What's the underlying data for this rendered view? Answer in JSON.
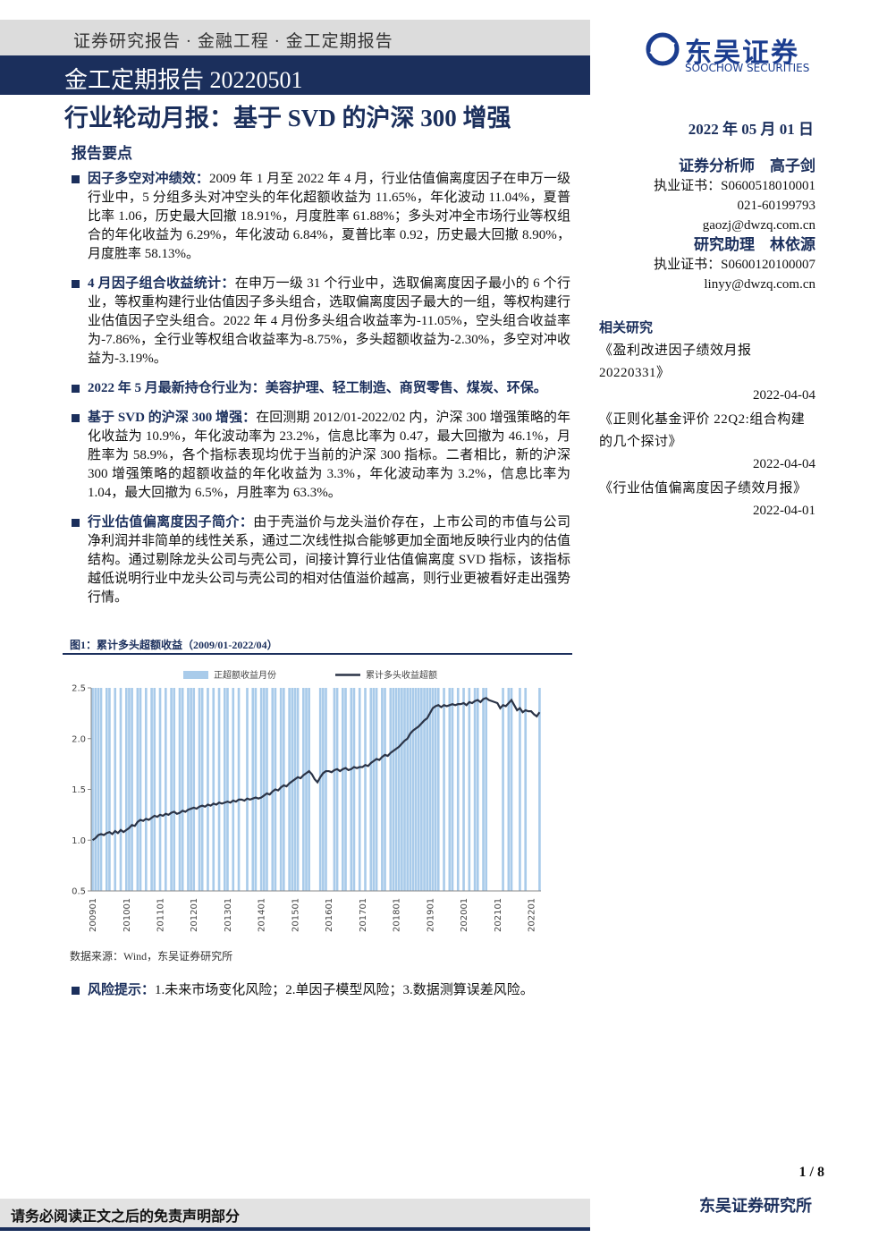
{
  "header": {
    "breadcrumb": "证券研究报告 · 金融工程 · 金工定期报告",
    "report": "金工定期报告 20220501",
    "logo": "东吴证券",
    "logo_en": "SOOCHOW SECURITIES"
  },
  "title": "行业轮动月报：基于 SVD 的沪深 300 增强",
  "date": "2022 年 05 月 01 日",
  "summary_heading": "报告要点",
  "bullets": [
    {
      "lead": "因子多空对冲绩效：",
      "text": "2009 年 1 月至 2022 年 4 月，行业估值偏离度因子在申万一级行业中，5 分组多头对冲空头的年化超额收益为 11.65%，年化波动 11.04%，夏普比率 1.06，历史最大回撤 18.91%，月度胜率 61.88%；多头对冲全市场行业等权组合的年化收益为 6.29%，年化波动 6.84%，夏普比率 0.92，历史最大回撤 8.90%，月度胜率 58.13%。"
    },
    {
      "lead": "4 月因子组合收益统计：",
      "text": "在申万一级 31 个行业中，选取偏离度因子最小的 6 个行业，等权重构建行业估值因子多头组合，选取偏离度因子最大的一组，等权构建行业估值因子空头组合。2022 年 4 月份多头组合收益率为-11.05%，空头组合收益率为-7.86%，全行业等权组合收益率为-8.75%，多头超额收益为-2.30%，多空对冲收益为-3.19%。"
    },
    {
      "lead": "2022 年 5 月最新持仓行业为：美容护理、轻工制造、商贸零售、煤炭、环保。",
      "text": ""
    },
    {
      "lead": "基于 SVD 的沪深 300 增强：",
      "text": "在回测期 2012/01-2022/02 内，沪深 300 增强策略的年化收益为 10.9%，年化波动率为 23.2%，信息比率为 0.47，最大回撤为 46.1%，月胜率为 58.9%，各个指标表现均优于当前的沪深 300 指标。二者相比，新的沪深 300 增强策略的超额收益的年化收益为 3.3%，年化波动率为 3.2%，信息比率为 1.04，最大回撤为 6.5%，月胜率为 63.3%。"
    },
    {
      "lead": "行业估值偏离度因子简介：",
      "text": "由于壳溢价与龙头溢价存在，上市公司的市值与公司净利润并非简单的线性关系，通过二次线性拟合能够更加全面地反映行业内的估值结构。通过剔除龙头公司与壳公司，间接计算行业估值偏离度 SVD 指标，该指标越低说明行业中龙头公司与壳公司的相对估值溢价越高，则行业更被看好走出强势行情。"
    }
  ],
  "analysts": [
    {
      "role": "证券分析师　高子剑",
      "cert": "执业证书：S0600518010001",
      "phone": "021-60199793",
      "email": "gaozj@dwzq.com.cn"
    },
    {
      "role": "研究助理　林依源",
      "cert": "执业证书：S0600120100007",
      "email": "linyy@dwzq.com.cn"
    }
  ],
  "related": {
    "heading": "相关研究",
    "items": [
      {
        "title": "《盈利改进因子绩效月报 20220331》",
        "date": "2022-04-04"
      },
      {
        "title": "《正则化基金评价 22Q2:组合构建的几个探讨》",
        "date": "2022-04-04"
      },
      {
        "title": "《行业估值偏离度因子绩效月报》",
        "date": "2022-04-01"
      }
    ]
  },
  "figure_caption": "图1：累计多头超额收益（2009/01-2022/04）",
  "chart_data": {
    "type": "bar-line",
    "categories": [
      "200901",
      null,
      null,
      null,
      null,
      null,
      null,
      null,
      null,
      null,
      null,
      null,
      "201001",
      null,
      null,
      null,
      null,
      null,
      null,
      null,
      null,
      null,
      null,
      null,
      "201101",
      null,
      null,
      null,
      null,
      null,
      null,
      null,
      null,
      null,
      null,
      null,
      "201201",
      null,
      null,
      null,
      null,
      null,
      null,
      null,
      null,
      null,
      null,
      null,
      "201301",
      null,
      null,
      null,
      null,
      null,
      null,
      null,
      null,
      null,
      null,
      null,
      "201401",
      null,
      null,
      null,
      null,
      null,
      null,
      null,
      null,
      null,
      null,
      null,
      "201501",
      null,
      null,
      null,
      null,
      null,
      null,
      null,
      null,
      null,
      null,
      null,
      "201601",
      null,
      null,
      null,
      null,
      null,
      null,
      null,
      null,
      null,
      null,
      null,
      "201701",
      null,
      null,
      null,
      null,
      null,
      null,
      null,
      null,
      null,
      null,
      null,
      "201801",
      null,
      null,
      null,
      null,
      null,
      null,
      null,
      null,
      null,
      null,
      null,
      "201901",
      null,
      null,
      null,
      null,
      null,
      null,
      null,
      null,
      null,
      null,
      null,
      "202001",
      null,
      null,
      null,
      null,
      null,
      null,
      null,
      null,
      null,
      null,
      null,
      "202101",
      null,
      null,
      null,
      null,
      null,
      null,
      null,
      null,
      null,
      null,
      null,
      "202201",
      null,
      null,
      null
    ],
    "series": [
      {
        "name": "正超额收益月份",
        "type": "bar",
        "axis": "y2",
        "color": "#a9cbea",
        "values": [
          1,
          1,
          1,
          1,
          0,
          1,
          1,
          0,
          1,
          0,
          1,
          0,
          1,
          1,
          1,
          0,
          1,
          1,
          0,
          1,
          0,
          1,
          1,
          0,
          1,
          0,
          1,
          0,
          1,
          1,
          0,
          1,
          1,
          0,
          1,
          1,
          1,
          0,
          1,
          1,
          0,
          1,
          0,
          1,
          0,
          1,
          0,
          1,
          1,
          0,
          1,
          0,
          1,
          0,
          0,
          1,
          0,
          1,
          1,
          0,
          1,
          1,
          1,
          0,
          1,
          1,
          0,
          1,
          1,
          0,
          1,
          1,
          1,
          1,
          0,
          1,
          1,
          1,
          0,
          0,
          0,
          1,
          1,
          1,
          0,
          0,
          1,
          1,
          0,
          1,
          1,
          0,
          1,
          1,
          0,
          1,
          0,
          1,
          0,
          1,
          1,
          1,
          0,
          1,
          1,
          0,
          1,
          1,
          1,
          1,
          1,
          1,
          1,
          1,
          1,
          1,
          1,
          1,
          1,
          1,
          1,
          1,
          1,
          1,
          0,
          1,
          0,
          1,
          1,
          0,
          1,
          0,
          1,
          0,
          1,
          0,
          1,
          1,
          0,
          1,
          1,
          0,
          0,
          0,
          0,
          0,
          1,
          0,
          1,
          1,
          0,
          0,
          1,
          0,
          1,
          0,
          0,
          0,
          0,
          1
        ]
      },
      {
        "name": "累计多头收益超额",
        "type": "line",
        "color": "#2b3447",
        "values": [
          1.0,
          1.02,
          1.05,
          1.06,
          1.05,
          1.07,
          1.08,
          1.06,
          1.09,
          1.07,
          1.1,
          1.08,
          1.1,
          1.12,
          1.15,
          1.14,
          1.18,
          1.2,
          1.19,
          1.21,
          1.2,
          1.22,
          1.24,
          1.23,
          1.25,
          1.24,
          1.26,
          1.25,
          1.27,
          1.28,
          1.26,
          1.27,
          1.29,
          1.28,
          1.3,
          1.31,
          1.32,
          1.31,
          1.33,
          1.34,
          1.33,
          1.35,
          1.34,
          1.36,
          1.35,
          1.37,
          1.36,
          1.37,
          1.38,
          1.37,
          1.39,
          1.38,
          1.4,
          1.4,
          1.39,
          1.41,
          1.4,
          1.41,
          1.42,
          1.41,
          1.42,
          1.44,
          1.46,
          1.45,
          1.48,
          1.5,
          1.49,
          1.52,
          1.54,
          1.53,
          1.56,
          1.58,
          1.6,
          1.62,
          1.61,
          1.64,
          1.66,
          1.68,
          1.65,
          1.6,
          1.57,
          1.62,
          1.66,
          1.68,
          1.68,
          1.67,
          1.69,
          1.7,
          1.68,
          1.7,
          1.71,
          1.69,
          1.7,
          1.72,
          1.71,
          1.72,
          1.72,
          1.74,
          1.73,
          1.76,
          1.78,
          1.8,
          1.79,
          1.82,
          1.84,
          1.83,
          1.86,
          1.88,
          1.9,
          1.92,
          1.95,
          1.98,
          2.0,
          2.05,
          2.08,
          2.1,
          2.12,
          2.15,
          2.18,
          2.2,
          2.25,
          2.3,
          2.32,
          2.33,
          2.31,
          2.33,
          2.32,
          2.33,
          2.34,
          2.33,
          2.34,
          2.34,
          2.35,
          2.33,
          2.36,
          2.35,
          2.37,
          2.38,
          2.36,
          2.39,
          2.4,
          2.38,
          2.37,
          2.36,
          2.35,
          2.3,
          2.33,
          2.32,
          2.35,
          2.38,
          2.33,
          2.28,
          2.3,
          2.26,
          2.28,
          2.27,
          2.27,
          2.24,
          2.22,
          2.26
        ]
      }
    ],
    "ylim": [
      0.5,
      2.5
    ],
    "yticks": [
      0.5,
      {
        "value": 1,
        "label": "1.0"
      },
      1.5,
      {
        "value": 2,
        "label": "2.0"
      },
      2.5
    ],
    "y2lim": [
      0,
      1
    ],
    "legend": "top"
  },
  "source": "数据来源：Wind，东吴证券研究所",
  "risk": {
    "lead": "风险提示：",
    "text": "1.未来市场变化风险；2.单因子模型风险；3.数据测算误差风险。"
  },
  "page_number": "1 / 8",
  "footer": {
    "disclaimer": "请务必阅读正文之后的免责声明部分",
    "org": "东吴证券研究所"
  }
}
